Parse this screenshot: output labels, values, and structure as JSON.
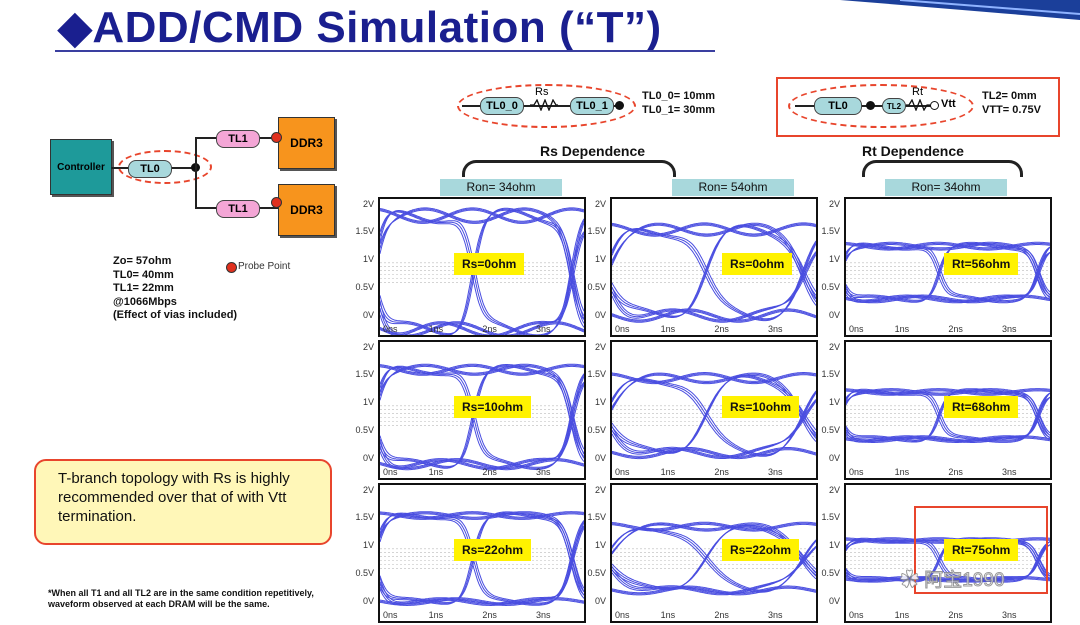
{
  "title": "◆ADD/CMD Simulation (“T”)",
  "topology": {
    "controller": "Controller",
    "tl0": "TL0",
    "tl1_top": "TL1",
    "tl1_bottom": "TL1",
    "ddr3_top": "DDR3",
    "ddr3_bottom": "DDR3",
    "params": [
      "Zo= 57ohm",
      "TL0= 40mm",
      "TL1= 22mm",
      "@1066Mbps",
      "(Effect of vias included)"
    ],
    "probe_legend": "Probe Point"
  },
  "rs_circuit": {
    "tl0_0": "TL0_0",
    "rs": "Rs",
    "tl0_1": "TL0_1",
    "params": [
      "TL0_0= 10mm",
      "TL0_1= 30mm"
    ]
  },
  "rt_circuit": {
    "tl0": "TL0",
    "tl2": "TL2",
    "rt": "Rt",
    "vtt": "Vtt",
    "params": [
      "TL2=  0mm",
      "VTT=  0.75V"
    ]
  },
  "sections": {
    "rs": "Rs Dependence",
    "rt": "Rt Dependence"
  },
  "columns": [
    {
      "ron": "Ron= 34ohm"
    },
    {
      "ron": "Ron= 54ohm"
    },
    {
      "ron": "Ron= 34ohm"
    }
  ],
  "y_ticks": [
    "2V",
    "1.5V",
    "1V",
    "0.5V",
    "0V"
  ],
  "x_ticks": [
    "0ns",
    "1ns",
    "2ns",
    "3ns"
  ],
  "plots": [
    [
      "Rs=0ohm",
      "Rs=0ohm",
      "Rt=56ohm"
    ],
    [
      "Rs=10ohm",
      "Rs=10ohm",
      "Rt=68ohm"
    ],
    [
      "Rs=22ohm",
      "Rs=22ohm",
      "Rt=75ohm"
    ]
  ],
  "note": "T-branch topology with Rs is highly recommended over that of with Vtt termination.",
  "footnote": [
    "*When all T1 and all TL2 are in the same condition repetitively,",
    "waveform observed at each DRAM will be the same."
  ],
  "watermark": "阿宝1990",
  "colors": {
    "title": "#1a1f8f",
    "waveform": "#4a4ee0",
    "highlight": "#e8452c",
    "badge": "#fff200",
    "controller": "#1e9a9a",
    "ddr3": "#f7941d",
    "tl1": "#f4a6d6",
    "tl0": "#a8d8dc"
  }
}
